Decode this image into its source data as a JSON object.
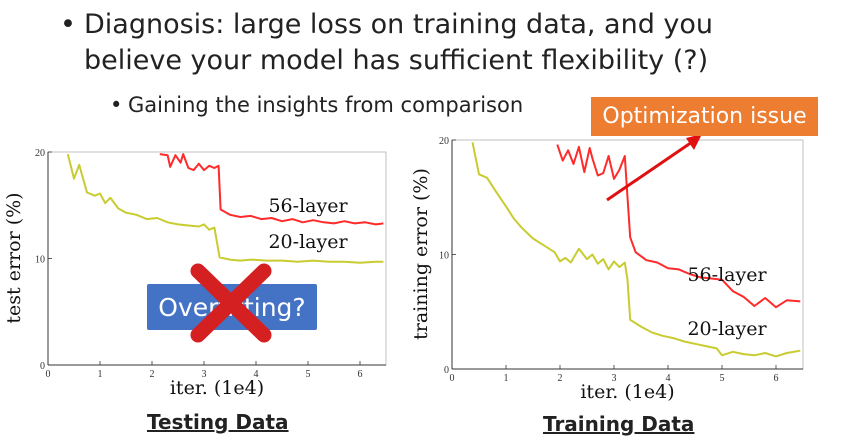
{
  "bullets": {
    "main_symbol": "•",
    "main_line1": "Diagnosis: large loss on training data, and you",
    "main_line2": "believe your model has sufficient flexibility (?)",
    "sub_symbol": "•",
    "sub_text": "Gaining the insights from comparison"
  },
  "callout": {
    "text": "Optimization issue",
    "color": "#ed7d31"
  },
  "overfitting": {
    "text": "Overfitting?",
    "color": "#4472c4",
    "cross_color": "#d42020",
    "cross_icon": "x-icon"
  },
  "captions": {
    "left": "Testing Data",
    "right": "Training Data"
  },
  "colors": {
    "layer56": "#ff2a2a",
    "layer20": "#c8cc30",
    "arrow": "#e01010"
  },
  "chart_data": [
    {
      "type": "line",
      "title": "",
      "xlabel": "iter. (1e4)",
      "ylabel": "test error (%)",
      "xlim": [
        0,
        6.5
      ],
      "ylim": [
        0,
        20
      ],
      "xticks": [
        "0",
        "1",
        "2",
        "3",
        "4",
        "5",
        "6"
      ],
      "xtick_values": [
        0,
        1,
        2,
        3,
        4,
        5,
        6
      ],
      "yticks": [
        "0",
        "10",
        "20"
      ],
      "ytick_values": [
        0,
        10,
        20
      ],
      "series": [
        {
          "name": "56-layer",
          "color": "#ff2a2a",
          "x": [
            2.15,
            2.3,
            2.35,
            2.45,
            2.55,
            2.6,
            2.7,
            2.8,
            2.9,
            3.0,
            3.1,
            3.2,
            3.28,
            3.32,
            3.5,
            3.7,
            3.9,
            4.1,
            4.3,
            4.5,
            4.7,
            4.9,
            5.1,
            5.3,
            5.5,
            5.7,
            5.9,
            6.1,
            6.3,
            6.45
          ],
          "y": [
            19.8,
            19.7,
            18.6,
            19.7,
            19.0,
            19.8,
            18.5,
            18.3,
            18.9,
            18.3,
            18.7,
            18.5,
            18.7,
            14.6,
            14.1,
            13.9,
            14.0,
            13.7,
            13.8,
            13.5,
            13.7,
            13.4,
            13.6,
            13.4,
            13.3,
            13.5,
            13.3,
            13.4,
            13.2,
            13.3
          ]
        },
        {
          "name": "20-layer",
          "color": "#c8cc30",
          "x": [
            0.38,
            0.5,
            0.6,
            0.75,
            0.9,
            1.0,
            1.1,
            1.2,
            1.35,
            1.5,
            1.7,
            1.9,
            2.1,
            2.3,
            2.5,
            2.7,
            2.9,
            3.0,
            3.1,
            3.2,
            3.3,
            3.5,
            3.7,
            3.9,
            4.2,
            4.5,
            4.8,
            5.1,
            5.4,
            5.7,
            6.0,
            6.3,
            6.45
          ],
          "y": [
            19.8,
            17.5,
            18.8,
            16.2,
            15.9,
            16.1,
            15.2,
            15.7,
            14.7,
            14.3,
            14.1,
            13.7,
            13.8,
            13.4,
            13.2,
            13.1,
            13.0,
            13.2,
            12.7,
            12.9,
            10.1,
            9.9,
            9.8,
            9.9,
            9.8,
            9.8,
            9.7,
            9.8,
            9.7,
            9.7,
            9.6,
            9.7,
            9.7
          ]
        }
      ]
    },
    {
      "type": "line",
      "title": "",
      "xlabel": "iter. (1e4)",
      "ylabel": "training error (%)",
      "xlim": [
        0,
        6.5
      ],
      "ylim": [
        0,
        20
      ],
      "xticks": [
        "0",
        "1",
        "2",
        "3",
        "4",
        "5",
        "6"
      ],
      "xtick_values": [
        0,
        1,
        2,
        3,
        4,
        5,
        6
      ],
      "yticks": [
        "0",
        "10",
        "20"
      ],
      "ytick_values": [
        0,
        10,
        20
      ],
      "series": [
        {
          "name": "56-layer",
          "color": "#ff2a2a",
          "x": [
            1.95,
            2.05,
            2.15,
            2.25,
            2.35,
            2.45,
            2.55,
            2.6,
            2.7,
            2.8,
            2.9,
            3.0,
            3.1,
            3.2,
            3.25,
            3.3,
            3.4,
            3.6,
            3.8,
            4.0,
            4.2,
            4.4,
            4.6,
            4.8,
            5.0,
            5.2,
            5.4,
            5.6,
            5.8,
            6.0,
            6.2,
            6.45
          ],
          "y": [
            19.6,
            18.2,
            19.1,
            17.9,
            19.4,
            17.2,
            19.3,
            18.4,
            16.9,
            17.1,
            18.6,
            16.6,
            17.4,
            18.6,
            15.0,
            11.5,
            10.2,
            9.5,
            9.3,
            8.8,
            8.7,
            8.3,
            8.0,
            7.9,
            7.8,
            6.8,
            6.3,
            5.5,
            6.2,
            5.4,
            6.0,
            5.9
          ]
        },
        {
          "name": "20-layer",
          "color": "#c8cc30",
          "x": [
            0.38,
            0.5,
            0.65,
            0.8,
            1.0,
            1.15,
            1.3,
            1.5,
            1.7,
            1.9,
            2.0,
            2.1,
            2.2,
            2.35,
            2.5,
            2.6,
            2.7,
            2.8,
            2.9,
            3.0,
            3.1,
            3.2,
            3.25,
            3.3,
            3.5,
            3.7,
            3.9,
            4.1,
            4.3,
            4.5,
            4.7,
            4.9,
            5.0,
            5.2,
            5.4,
            5.6,
            5.8,
            6.0,
            6.2,
            6.45
          ],
          "y": [
            19.8,
            17.0,
            16.7,
            15.6,
            14.2,
            13.1,
            12.3,
            11.4,
            10.8,
            10.2,
            9.4,
            9.7,
            9.3,
            10.5,
            9.6,
            10.0,
            9.2,
            9.6,
            8.7,
            9.4,
            8.9,
            9.3,
            7.8,
            4.3,
            3.7,
            3.2,
            2.9,
            2.7,
            2.4,
            2.2,
            2.0,
            1.8,
            1.2,
            1.5,
            1.3,
            1.2,
            1.4,
            1.1,
            1.4,
            1.6
          ]
        }
      ]
    }
  ]
}
